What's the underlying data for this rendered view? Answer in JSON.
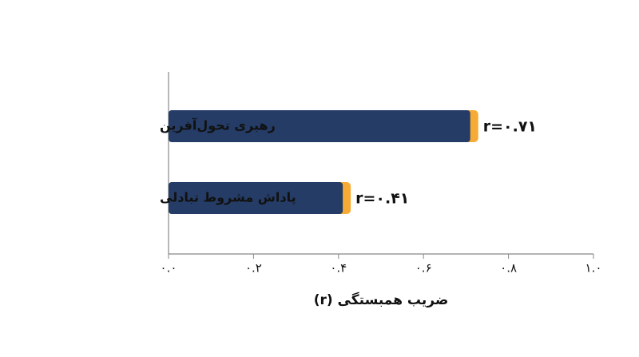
{
  "chart_data": {
    "type": "hbar",
    "categories": [
      "رهبری تحول‌آفرین",
      "پاداش مشروط تبادلی"
    ],
    "values": [
      0.71,
      0.41
    ],
    "value_labels": [
      "r=۰.۷۱",
      "r=۰.۴۱"
    ],
    "color": "#243c66",
    "accent_color": "#f5ab35",
    "x_label": "ضریب همبستگی (r)",
    "xlim": [
      0,
      1
    ],
    "xticks": [
      {
        "value": 0,
        "label": "۰.۰"
      },
      {
        "value": 0.2,
        "label": "۰.۲"
      },
      {
        "value": 0.4,
        "label": "۰.۴"
      },
      {
        "value": 0.6,
        "label": "۰.۶"
      },
      {
        "value": 0.8,
        "label": "۰.۸"
      },
      {
        "value": 1,
        "label": "۱.۰"
      }
    ],
    "grid": false
  }
}
